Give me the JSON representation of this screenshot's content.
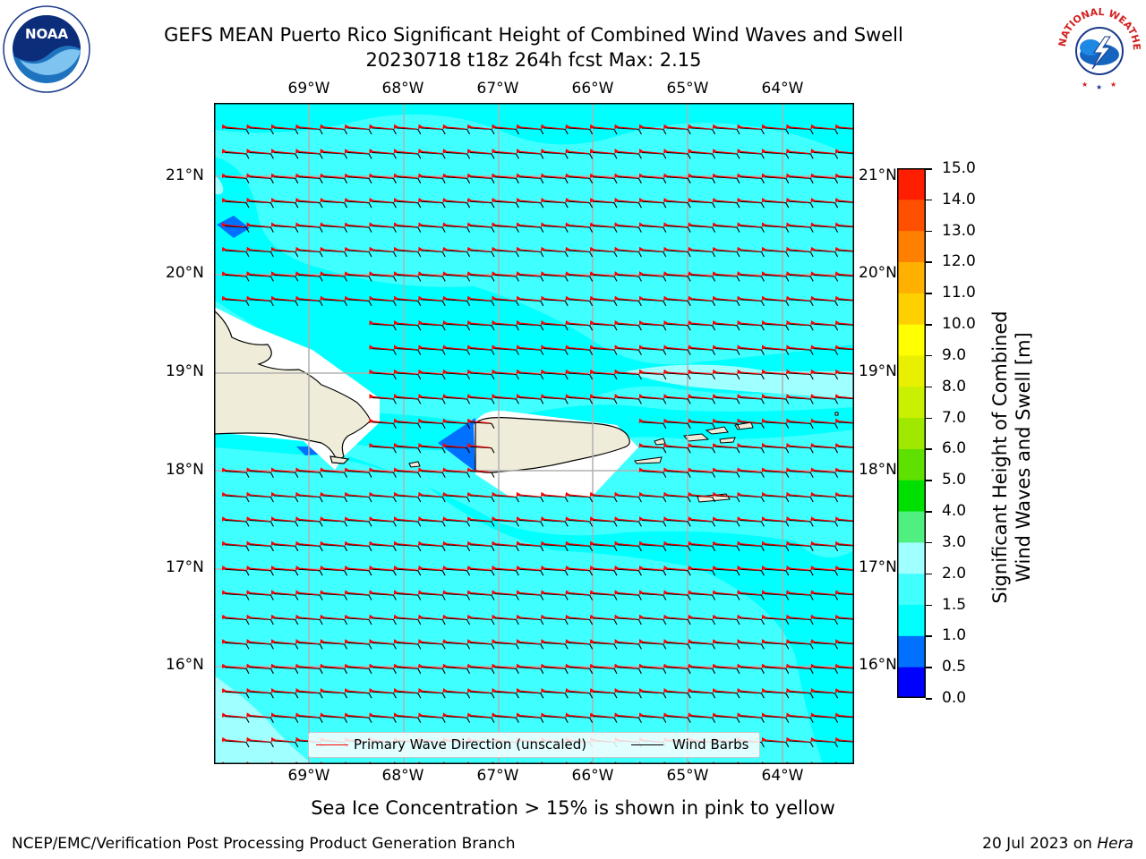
{
  "header": {
    "title_line1": "GEFS MEAN Puerto Rico Significant Height of Combined Wind Waves and Swell",
    "title_line2": "20230718 t18z 264h fcst   Max: 2.15"
  },
  "logos": {
    "left": {
      "icon": "noaa-logo-icon",
      "text": "NOAA"
    },
    "right": {
      "icon": "nws-logo-icon",
      "text": "NATIONAL WEATHER SERVICE"
    }
  },
  "map": {
    "lon_ticks": [
      "69°W",
      "68°W",
      "67°W",
      "66°W",
      "65°W",
      "64°W"
    ],
    "lat_ticks": [
      "21°N",
      "20°N",
      "19°N",
      "18°N",
      "17°N",
      "16°N"
    ],
    "lon_range": [
      -70,
      -63.25
    ],
    "lat_range": [
      15,
      21.75
    ],
    "land_color": "#efedda",
    "grid": true,
    "legend": {
      "placement": "bottom-center",
      "items": [
        {
          "label": "Primary Wave Direction (unscaled)",
          "color": "#ff0000"
        },
        {
          "label": "Wind Barbs",
          "color": "#000000"
        }
      ]
    }
  },
  "colorbar": {
    "title": "Significant Height of Combined Wind Waves and Swell [m]",
    "title_line1": "Significant Height of Combined",
    "title_line2": "Wind Waves and Swell [m]",
    "ticks": [
      "15.0",
      "14.0",
      "13.0",
      "12.0",
      "11.0",
      "10.0",
      "9.0",
      "8.0",
      "7.0",
      "6.0",
      "5.0",
      "4.0",
      "3.0",
      "2.0",
      "1.5",
      "1.0",
      "0.5",
      "0.0"
    ],
    "colors_bottom_to_top": [
      "#0000ff",
      "#0070ff",
      "#00ffff",
      "#40ffff",
      "#a0ffff",
      "#50f080",
      "#00e000",
      "#60e000",
      "#a0e800",
      "#c8f000",
      "#e8f000",
      "#ffff00",
      "#ffd000",
      "#ffb000",
      "#ff8000",
      "#ff5000",
      "#ff1e00"
    ]
  },
  "footer": {
    "ice_note": "Sea Ice Concentration > 15% is shown in pink to yellow",
    "credit_left": "NCEP/EMC/Verification Post Processing Product Generation Branch",
    "credit_right_date": "20 Jul 2023 on ",
    "credit_right_machine": "Hera"
  }
}
